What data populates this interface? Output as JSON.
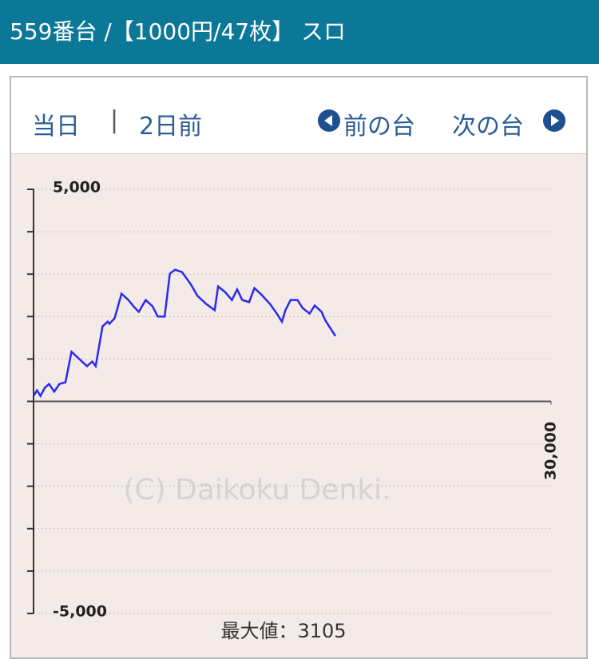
{
  "header": {
    "title": "559番台 /【1000円/47枚】 スロ"
  },
  "nav": {
    "today": "当日",
    "separator": "|",
    "two_days_ago": "2日前",
    "prev": "前の台",
    "next": "次の台"
  },
  "chart_data": {
    "type": "line",
    "watermark": "(C) Daikoku Denki.",
    "max_text": "最大値：3105",
    "xlim": [
      0,
      30000
    ],
    "xticks": [
      {
        "value": 30000,
        "label": "30,000"
      }
    ],
    "ylim": [
      -5000,
      5000
    ],
    "yticks": [
      {
        "value": -5000,
        "label": "-5,000"
      },
      {
        "value": 5000,
        "label": "5,000"
      }
    ],
    "yminor_ticks": [
      -4000,
      -3000,
      -2000,
      -1000,
      0,
      1000,
      2000,
      3000,
      4000
    ],
    "grid": true,
    "color": "#2a2af0",
    "x": [
      0,
      200,
      400,
      650,
      900,
      1200,
      1500,
      1850,
      2200,
      2700,
      3100,
      3400,
      3600,
      4000,
      4300,
      4400,
      4700,
      5100,
      5500,
      5800,
      6100,
      6500,
      6900,
      7200,
      7600,
      7900,
      8200,
      8600,
      9100,
      9500,
      10000,
      10500,
      10700,
      11100,
      11500,
      11800,
      12100,
      12500,
      12800,
      13200,
      13700,
      14100,
      14400,
      14600,
      14900,
      15300,
      15600,
      16000,
      16300,
      16700,
      16900,
      17200,
      17500
    ],
    "values": [
      130,
      260,
      130,
      320,
      410,
      230,
      410,
      450,
      1170,
      980,
      830,
      940,
      830,
      1770,
      1880,
      1830,
      1960,
      2540,
      2390,
      2240,
      2110,
      2390,
      2240,
      2000,
      2000,
      3010,
      3105,
      3050,
      2770,
      2490,
      2300,
      2150,
      2710,
      2580,
      2390,
      2640,
      2390,
      2340,
      2670,
      2520,
      2300,
      2070,
      1880,
      2150,
      2390,
      2390,
      2200,
      2070,
      2260,
      2110,
      1920,
      1730,
      1540
    ]
  }
}
